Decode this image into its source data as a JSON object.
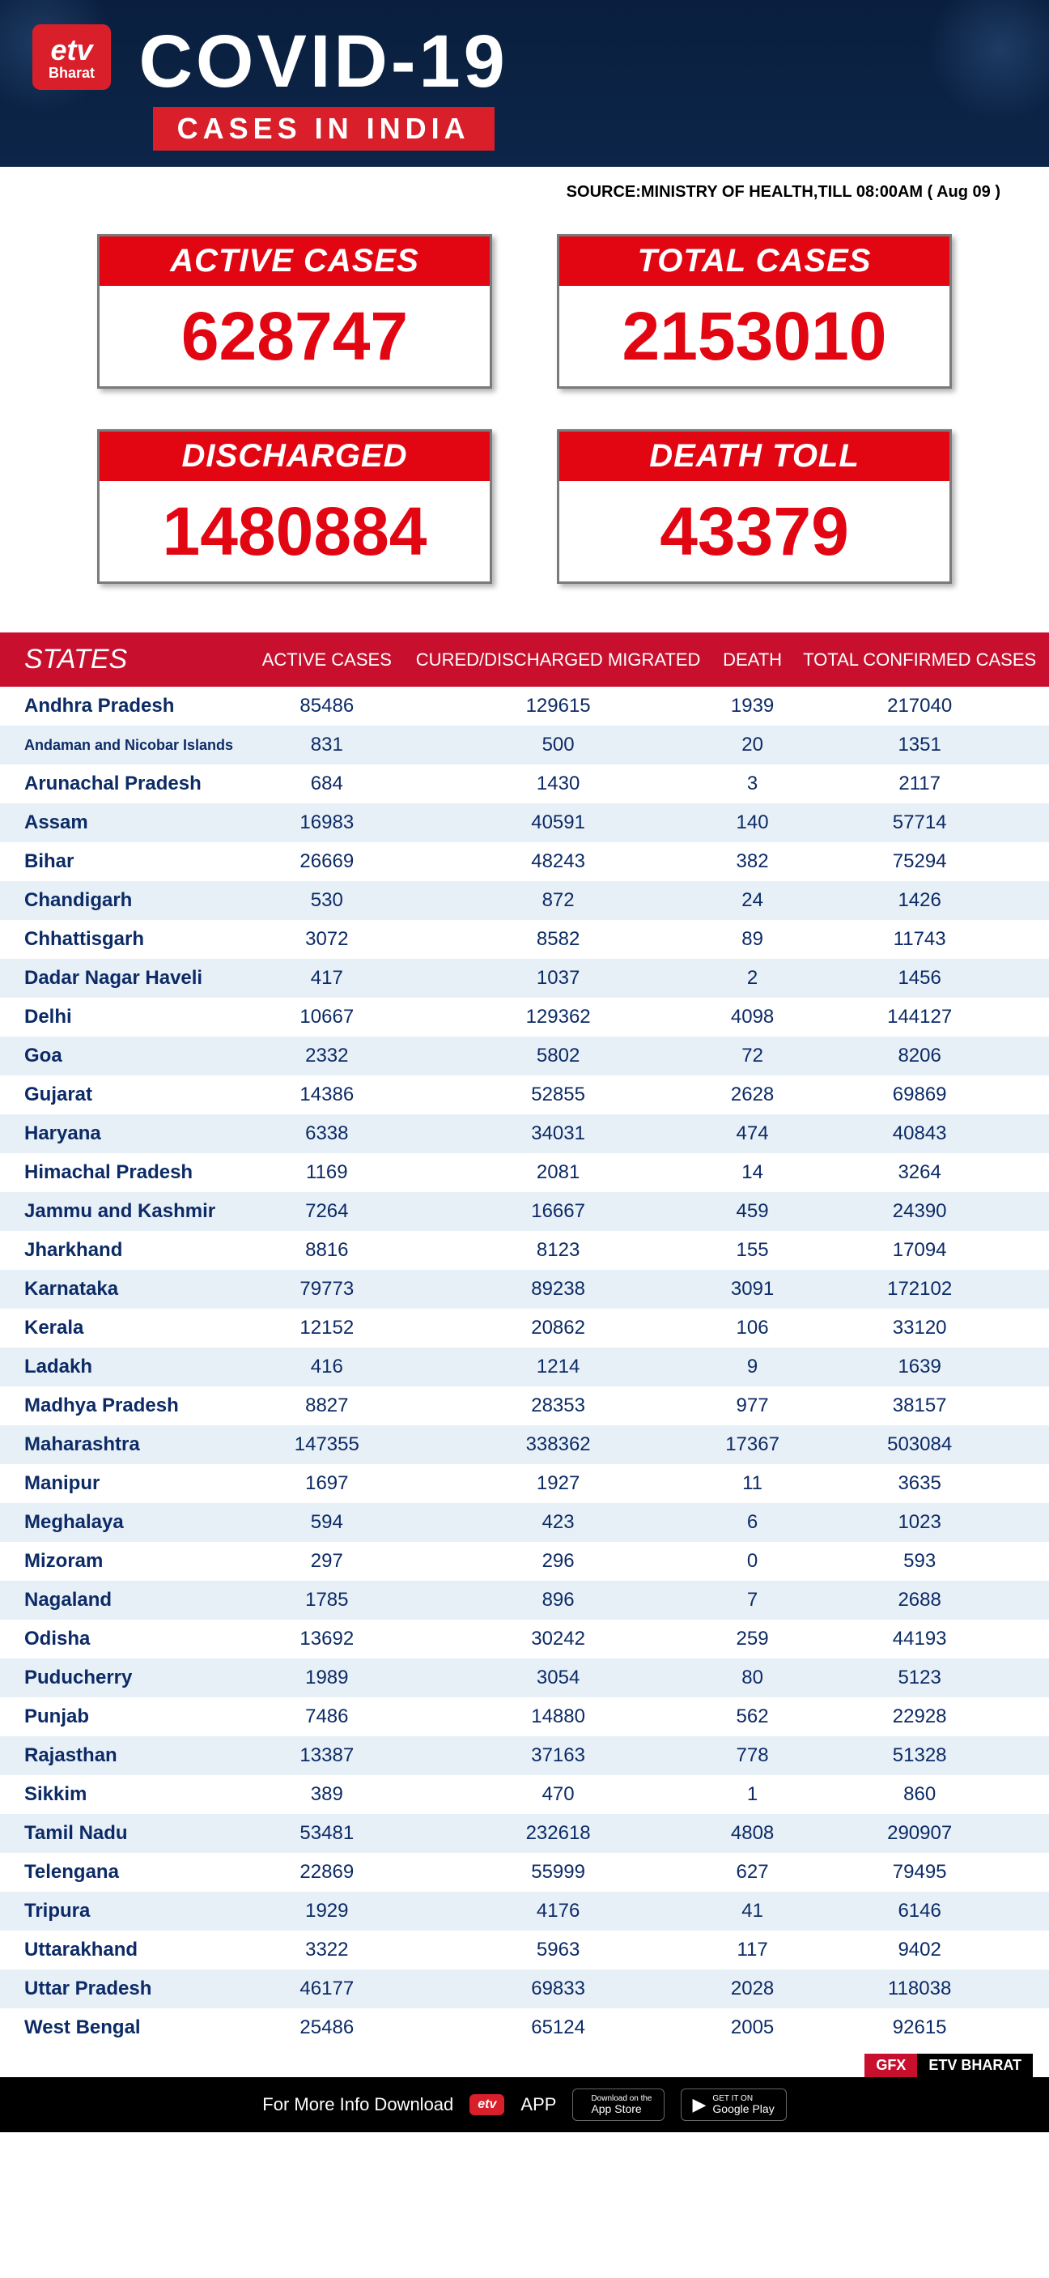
{
  "branding": {
    "logo_top": "etv",
    "logo_bottom": "Bharat"
  },
  "header": {
    "title": "COVID-19",
    "subtitle": "CASES IN INDIA",
    "background_color": "#0a1f3f",
    "accent_color": "#d91f2a"
  },
  "source": {
    "text": "SOURCE:MINISTRY OF HEALTH,TILL 08:00AM ( Aug 09 )"
  },
  "summary_cards": {
    "active": {
      "label": "ACTIVE CASES",
      "value": "628747"
    },
    "total": {
      "label": "TOTAL CASES",
      "value": "2153010"
    },
    "discharged": {
      "label": "DISCHARGED",
      "value": "1480884"
    },
    "death": {
      "label": "DEATH TOLL",
      "value": "43379"
    },
    "label_bg": "#e20613",
    "value_color": "#e20613",
    "border_color": "#7a7a7a"
  },
  "table": {
    "header_bg": "#c8102e",
    "row_odd_bg": "#ffffff",
    "row_even_bg": "#e8f0f7",
    "text_color": "#0c2b66",
    "columns": [
      "STATES",
      "ACTIVE CASES",
      "CURED/DISCHARGED MIGRATED",
      "DEATH",
      "TOTAL CONFIRMED CASES"
    ],
    "rows": [
      [
        "Andhra Pradesh",
        "85486",
        "129615",
        "1939",
        "217040"
      ],
      [
        "Andaman and Nicobar Islands",
        "831",
        "500",
        "20",
        "1351"
      ],
      [
        "Arunachal Pradesh",
        "684",
        "1430",
        "3",
        "2117"
      ],
      [
        "Assam",
        "16983",
        "40591",
        "140",
        "57714"
      ],
      [
        "Bihar",
        "26669",
        "48243",
        "382",
        "75294"
      ],
      [
        "Chandigarh",
        "530",
        "872",
        "24",
        "1426"
      ],
      [
        "Chhattisgarh",
        "3072",
        "8582",
        "89",
        "11743"
      ],
      [
        "Dadar Nagar Haveli",
        "417",
        "1037",
        "2",
        "1456"
      ],
      [
        "Delhi",
        "10667",
        "129362",
        "4098",
        "144127"
      ],
      [
        "Goa",
        "2332",
        "5802",
        "72",
        "8206"
      ],
      [
        "Gujarat",
        "14386",
        "52855",
        "2628",
        "69869"
      ],
      [
        "Haryana",
        "6338",
        "34031",
        "474",
        "40843"
      ],
      [
        "Himachal Pradesh",
        "1169",
        "2081",
        "14",
        "3264"
      ],
      [
        "Jammu and Kashmir",
        "7264",
        "16667",
        "459",
        "24390"
      ],
      [
        "Jharkhand",
        "8816",
        "8123",
        "155",
        "17094"
      ],
      [
        "Karnataka",
        "79773",
        "89238",
        "3091",
        "172102"
      ],
      [
        "Kerala",
        "12152",
        "20862",
        "106",
        "33120"
      ],
      [
        "Ladakh",
        "416",
        "1214",
        "9",
        "1639"
      ],
      [
        "Madhya Pradesh",
        "8827",
        "28353",
        "977",
        "38157"
      ],
      [
        "Maharashtra",
        "147355",
        "338362",
        "17367",
        "503084"
      ],
      [
        "Manipur",
        "1697",
        "1927",
        "11",
        "3635"
      ],
      [
        "Meghalaya",
        "594",
        "423",
        "6",
        "1023"
      ],
      [
        "Mizoram",
        "297",
        "296",
        "0",
        "593"
      ],
      [
        "Nagaland",
        "1785",
        "896",
        "7",
        "2688"
      ],
      [
        "Odisha",
        "13692",
        "30242",
        "259",
        "44193"
      ],
      [
        "Puducherry",
        "1989",
        "3054",
        "80",
        "5123"
      ],
      [
        "Punjab",
        "7486",
        "14880",
        "562",
        "22928"
      ],
      [
        "Rajasthan",
        "13387",
        "37163",
        "778",
        "51328"
      ],
      [
        "Sikkim",
        "389",
        "470",
        "1",
        "860"
      ],
      [
        "Tamil Nadu",
        "53481",
        "232618",
        "4808",
        "290907"
      ],
      [
        "Telengana",
        "22869",
        "55999",
        "627",
        "79495"
      ],
      [
        "Tripura",
        "1929",
        "4176",
        "41",
        "6146"
      ],
      [
        "Uttarakhand",
        "3322",
        "5963",
        "117",
        "9402"
      ],
      [
        "Uttar Pradesh",
        "46177",
        "69833",
        "2028",
        "118038"
      ],
      [
        "West Bengal",
        "25486",
        "65124",
        "2005",
        "92615"
      ]
    ]
  },
  "gfx": {
    "left": "GFX",
    "right": "ETV BHARAT"
  },
  "footer": {
    "text": "For More Info Download",
    "mini_logo": "etv",
    "app_label": "APP",
    "appstore_small": "Download on the",
    "appstore_big": "App Store",
    "play_small": "GET IT ON",
    "play_big": "Google Play"
  }
}
